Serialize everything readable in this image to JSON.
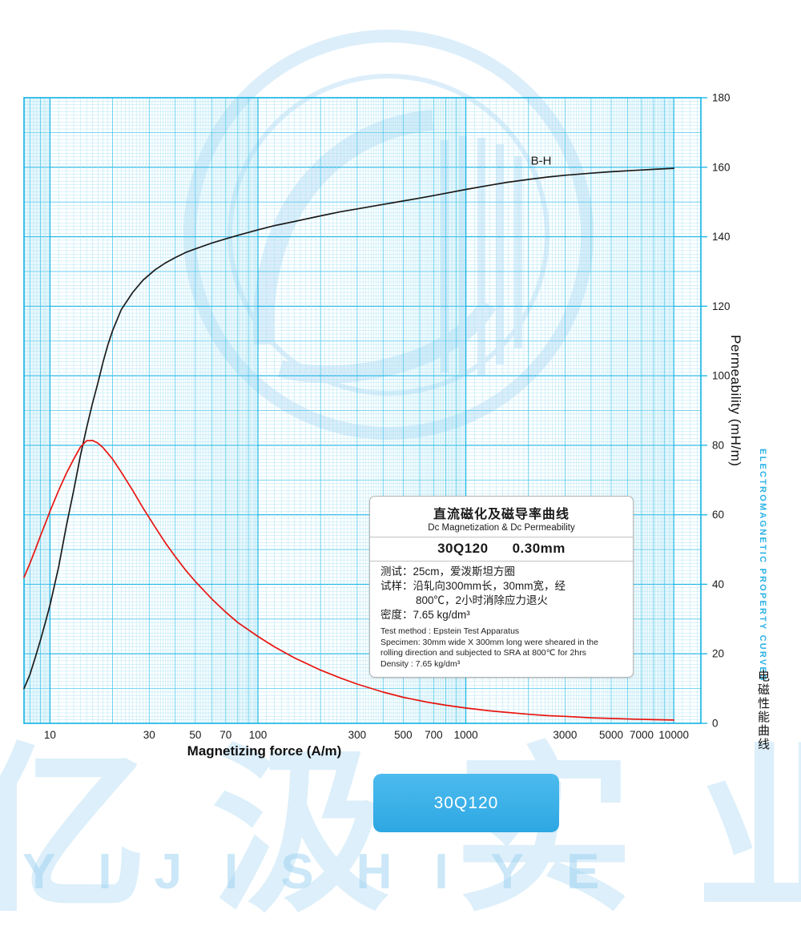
{
  "watermark": {
    "cn_text": "亿汲实业",
    "letters": "YIJISHIYE"
  },
  "side_labels": {
    "permeability_axis": "Permeability (mH/m)",
    "electromagnetic_en": "ELECTROMAGNETIC PROPERTY CURVES",
    "electromagnetic_cn": "电磁性能曲线"
  },
  "badge": {
    "label": "30Q120"
  },
  "info_box": {
    "title_cn": "直流磁化及磁导率曲线",
    "title_en": "Dc Magnetization & Dc Permeability",
    "grade": "30Q120",
    "thickness": "0.30mm",
    "cn_lines": [
      "测试：25cm，爱泼斯坦方圈",
      "试样：沿轧向300mm长，30mm宽，经",
      "800℃，2小时消除应力退火",
      "密度：7.65 kg/dm³"
    ],
    "en_lines": [
      "Test method : Epstein Test Apparatus",
      "Specimen: 30mm wide X 300mm long were sheared in the",
      "rolling direction and subjected to SRA at 800℃ for 2hrs",
      "Density : 7.65 kg/dm³"
    ]
  },
  "chart_data": {
    "type": "line",
    "title": "Dc Magnetization & Dc Permeability — 30Q120 0.30mm",
    "xlabel": "Magnetizing force (A/m)",
    "ylabel": "Permeability (mH/m)",
    "x_scale": "log",
    "xlim": [
      7.5,
      13500
    ],
    "ylim": [
      0,
      180
    ],
    "x_ticks": [
      10,
      30,
      50,
      70,
      100,
      300,
      500,
      700,
      1000,
      3000,
      5000,
      7000,
      10000
    ],
    "y_ticks": [
      0,
      20,
      40,
      60,
      80,
      100,
      120,
      140,
      160,
      180
    ],
    "grid": "fine log-x / linear-y graph paper, cyan",
    "legend_position": "inline curve label",
    "grid_colors": {
      "light": "#a8e2f4",
      "mid": "#4cc8ec",
      "strong": "#10b2e4"
    },
    "series": [
      {
        "name": "B-H",
        "label": "B-H",
        "label_at": [
          2300,
          160.8
        ],
        "color": "#1b1b1b",
        "points": [
          [
            7.5,
            10
          ],
          [
            8,
            14
          ],
          [
            8.5,
            19
          ],
          [
            9,
            24
          ],
          [
            9.5,
            29
          ],
          [
            10,
            34
          ],
          [
            11,
            45
          ],
          [
            12,
            57
          ],
          [
            13,
            67
          ],
          [
            14,
            77
          ],
          [
            15,
            85
          ],
          [
            16,
            92
          ],
          [
            17,
            98
          ],
          [
            18,
            104
          ],
          [
            19,
            109
          ],
          [
            20,
            113
          ],
          [
            22,
            119
          ],
          [
            25,
            124
          ],
          [
            28,
            127.5
          ],
          [
            32,
            130.5
          ],
          [
            36,
            132.5
          ],
          [
            40,
            134
          ],
          [
            45,
            135.5
          ],
          [
            50,
            136.5
          ],
          [
            60,
            138.2
          ],
          [
            70,
            139.4
          ],
          [
            80,
            140.4
          ],
          [
            100,
            142
          ],
          [
            120,
            143.2
          ],
          [
            150,
            144.4
          ],
          [
            200,
            146
          ],
          [
            250,
            147.2
          ],
          [
            300,
            148
          ],
          [
            400,
            149.3
          ],
          [
            500,
            150.3
          ],
          [
            650,
            151.5
          ],
          [
            800,
            152.5
          ],
          [
            1000,
            153.6
          ],
          [
            1300,
            154.8
          ],
          [
            1600,
            155.7
          ],
          [
            2000,
            156.5
          ],
          [
            2500,
            157.2
          ],
          [
            3000,
            157.7
          ],
          [
            4000,
            158.3
          ],
          [
            5000,
            158.7
          ],
          [
            6500,
            159.1
          ],
          [
            8000,
            159.4
          ],
          [
            10000,
            159.7
          ]
        ]
      },
      {
        "name": "DC-Permeability",
        "label": "",
        "label_at": [
          0,
          0
        ],
        "color": "#e8140f",
        "points": [
          [
            7.5,
            42
          ],
          [
            8,
            46
          ],
          [
            8.5,
            50
          ],
          [
            9,
            54
          ],
          [
            9.5,
            57.5
          ],
          [
            10,
            61
          ],
          [
            11,
            67
          ],
          [
            12,
            72
          ],
          [
            13,
            76
          ],
          [
            14,
            79.5
          ],
          [
            15,
            81.3
          ],
          [
            16,
            81.4
          ],
          [
            17,
            80.6
          ],
          [
            18,
            79.3
          ],
          [
            20,
            76
          ],
          [
            22,
            72.3
          ],
          [
            25,
            67
          ],
          [
            28,
            62
          ],
          [
            32,
            56.5
          ],
          [
            36,
            51.8
          ],
          [
            40,
            48
          ],
          [
            45,
            44
          ],
          [
            50,
            40.8
          ],
          [
            60,
            35.8
          ],
          [
            70,
            32
          ],
          [
            80,
            29
          ],
          [
            100,
            25
          ],
          [
            120,
            22
          ],
          [
            150,
            18.8
          ],
          [
            200,
            15.3
          ],
          [
            250,
            13
          ],
          [
            300,
            11.3
          ],
          [
            400,
            9
          ],
          [
            500,
            7.5
          ],
          [
            650,
            6.1
          ],
          [
            800,
            5.2
          ],
          [
            1000,
            4.4
          ],
          [
            1300,
            3.6
          ],
          [
            1600,
            3.1
          ],
          [
            2000,
            2.6
          ],
          [
            2500,
            2.2
          ],
          [
            3000,
            2
          ],
          [
            4000,
            1.6
          ],
          [
            5000,
            1.4
          ],
          [
            6500,
            1.2
          ],
          [
            8000,
            1.05
          ],
          [
            10000,
            0.95
          ]
        ]
      }
    ]
  }
}
